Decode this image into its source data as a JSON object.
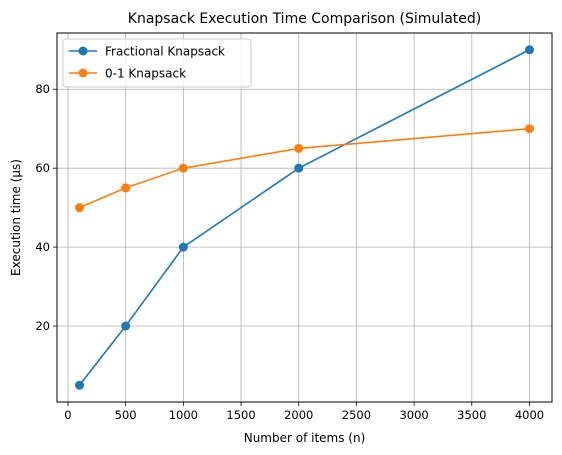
{
  "chart_data": {
    "type": "line",
    "title": "Knapsack Execution Time Comparison (Simulated)",
    "xlabel": "Number of items (n)",
    "ylabel": "Execution time (µs)",
    "x": [
      100,
      500,
      1000,
      2000,
      4000
    ],
    "series": [
      {
        "name": "Fractional Knapsack",
        "values": [
          5,
          20,
          40,
          60,
          90
        ],
        "color": "#1f77b4"
      },
      {
        "name": "0-1 Knapsack",
        "values": [
          50,
          55,
          60,
          65,
          70
        ],
        "color": "#ff7f0e"
      }
    ],
    "xlim": [
      -95,
      4195
    ],
    "ylim": [
      0.75,
      94.25
    ],
    "xticks": [
      0,
      500,
      1000,
      1500,
      2000,
      2500,
      3000,
      3500,
      4000
    ],
    "yticks": [
      20,
      40,
      60,
      80
    ],
    "grid": true,
    "legend_position": "upper-left",
    "marker": "circle"
  }
}
